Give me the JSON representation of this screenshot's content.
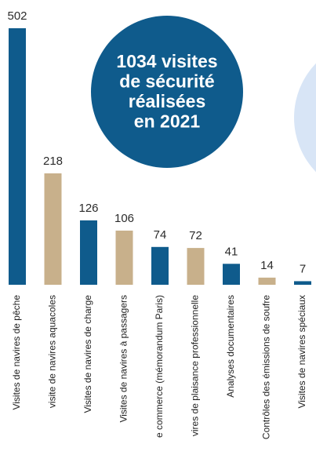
{
  "chart_data": {
    "type": "bar",
    "categories": [
      "Visites de navires de pêche",
      "visite de navires aquacoles",
      "Visites de navires de charge",
      "Visites de navires à passagers",
      "e commerce (mémorandum Paris)",
      "vires de plaisance professionnelle",
      "Analyses documentaires",
      "Contrôles des émissions de soufre",
      "Visites de navires spéciaux"
    ],
    "values": [
      502,
      218,
      126,
      106,
      74,
      72,
      41,
      14,
      7
    ],
    "colors": [
      "#0f5b8c",
      "#c8b08b",
      "#0f5b8c",
      "#c8b08b",
      "#0f5b8c",
      "#c8b08b",
      "#0f5b8c",
      "#c8b08b",
      "#0f5b8c"
    ],
    "annotation": [
      "1034 visites",
      "de sécurité",
      "réalisées",
      "en 2021"
    ]
  }
}
